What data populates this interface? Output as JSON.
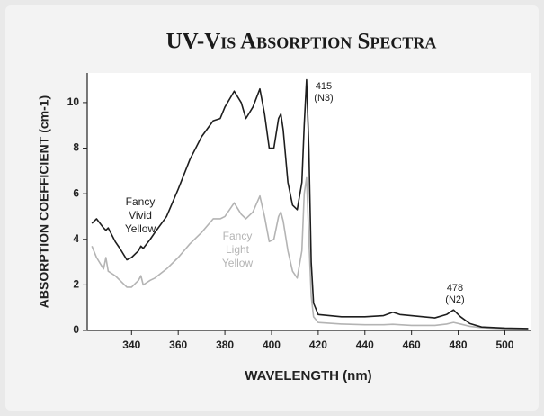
{
  "chart_data": {
    "type": "line",
    "title": "UV-Vis Absorption Spectra",
    "x_label": "WAVELENGTH (nm)",
    "y_label": "ABSORPTION COEFFICIENT (cm-1)",
    "x": [
      323,
      325,
      328,
      329,
      330,
      333,
      335,
      338,
      340,
      342,
      343,
      344,
      345,
      348,
      350,
      355,
      360,
      365,
      370,
      375,
      378,
      380,
      384,
      387,
      389,
      392,
      395,
      397,
      399,
      401,
      403,
      404,
      405,
      407,
      409,
      411,
      413,
      414,
      415,
      416,
      417,
      418,
      420,
      430,
      440,
      448,
      452,
      455,
      460,
      465,
      470,
      475,
      478,
      481,
      485,
      490,
      500,
      510
    ],
    "series": [
      {
        "name": "Fancy Vivid Yellow",
        "color": "#1e1e1e",
        "values": [
          4.7,
          4.9,
          4.5,
          4.4,
          4.5,
          3.9,
          3.6,
          3.1,
          3.2,
          3.4,
          3.5,
          3.7,
          3.6,
          4.0,
          4.3,
          5.0,
          6.2,
          7.5,
          8.5,
          9.2,
          9.3,
          9.8,
          10.5,
          10.0,
          9.3,
          9.8,
          10.6,
          9.5,
          8.0,
          8.0,
          9.3,
          9.5,
          8.8,
          6.5,
          5.5,
          5.3,
          6.5,
          9.0,
          11.0,
          8.0,
          3.0,
          1.2,
          0.7,
          0.6,
          0.6,
          0.65,
          0.8,
          0.7,
          0.65,
          0.6,
          0.55,
          0.7,
          0.9,
          0.6,
          0.3,
          0.15,
          0.1,
          0.08
        ]
      },
      {
        "name": "Fancy Light Yellow",
        "color": "#b4b4b4",
        "values": [
          3.7,
          3.2,
          2.7,
          3.2,
          2.6,
          2.4,
          2.2,
          1.9,
          1.9,
          2.1,
          2.2,
          2.4,
          2.0,
          2.2,
          2.3,
          2.7,
          3.2,
          3.8,
          4.3,
          4.9,
          4.9,
          5.0,
          5.6,
          5.1,
          4.9,
          5.2,
          5.9,
          5.0,
          3.9,
          4.0,
          5.0,
          5.2,
          4.8,
          3.5,
          2.6,
          2.3,
          3.5,
          6.0,
          6.7,
          4.0,
          1.5,
          0.6,
          0.35,
          0.28,
          0.25,
          0.25,
          0.27,
          0.25,
          0.22,
          0.22,
          0.22,
          0.28,
          0.35,
          0.28,
          0.18,
          0.12,
          0.07,
          0.05
        ]
      }
    ],
    "annotations": [
      {
        "lines": [
          "415",
          "(N3)"
        ]
      },
      {
        "lines": [
          "478",
          "(N2)"
        ]
      }
    ],
    "xlim": [
      321,
      511
    ],
    "ylim": [
      0,
      11.3
    ],
    "xticks": [
      340,
      360,
      380,
      400,
      420,
      440,
      460,
      480,
      500
    ],
    "yticks": [
      0,
      2,
      4,
      6,
      8,
      10
    ],
    "grid": false
  }
}
